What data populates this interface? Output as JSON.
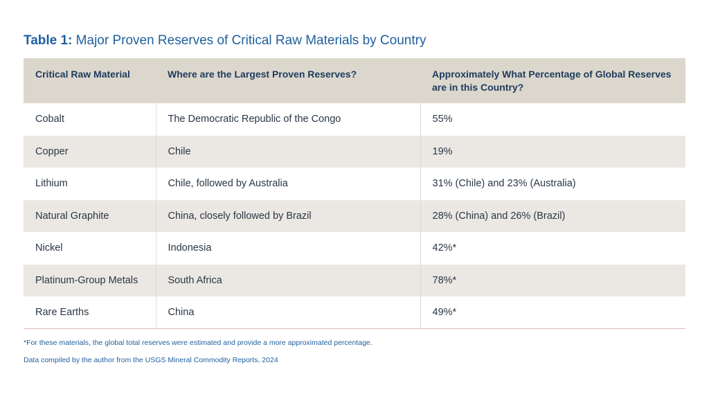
{
  "title": {
    "prefix": "Table 1:",
    "text": " Major Proven Reserves of Critical Raw Materials by Country"
  },
  "table": {
    "headers": [
      "Critical Raw Material",
      "Where are the Largest Proven Reserves?",
      "Approximately What Percentage of Global Reserves are in this Country?"
    ],
    "rows": [
      [
        "Cobalt",
        "The Democratic Republic of the Congo",
        "55%"
      ],
      [
        "Copper",
        "Chile",
        "19%"
      ],
      [
        "Lithium",
        "Chile, followed by Australia",
        "31% (Chile) and 23% (Australia)"
      ],
      [
        "Natural Graphite",
        "China, closely followed by Brazil",
        "28% (China) and 26% (Brazil)"
      ],
      [
        "Nickel",
        "Indonesia",
        "42%*"
      ],
      [
        "Platinum-Group Metals",
        "South Africa",
        "78%*"
      ],
      [
        "Rare Earths",
        "China",
        "49%*"
      ]
    ]
  },
  "footnotes": {
    "asterisk": "*For these materials, the global total reserves were estimated and provide a more approximated percentage.",
    "source": "Data compiled by the author from the USGS Mineral Commodity Reports, 2024"
  },
  "colors": {
    "title": "#1f5f9e",
    "header_bg": "#dcd7cd",
    "row_alt_bg": "#ebe8e3",
    "header_text": "#1d3a5c"
  }
}
